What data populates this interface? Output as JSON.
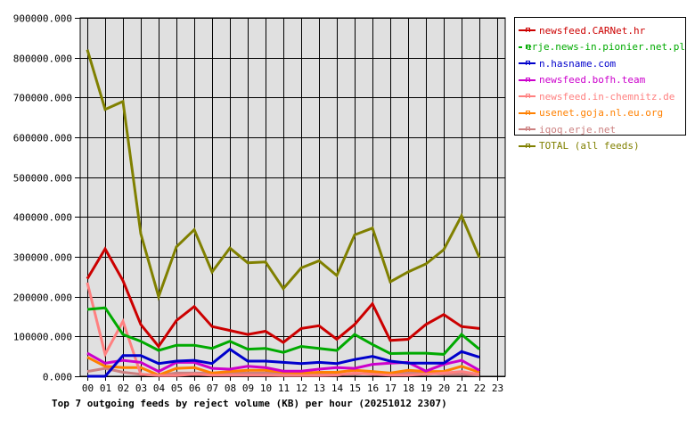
{
  "chart_data": {
    "type": "line",
    "title": "Top 7 outgoing feeds by reject volume (KB) per hour (20251012 2307)",
    "xlabel": "",
    "ylabel": "",
    "ylim": [
      0,
      900000
    ],
    "grid": true,
    "legend_position": "right-top",
    "categories": [
      "00",
      "01",
      "02",
      "03",
      "04",
      "05",
      "06",
      "07",
      "08",
      "09",
      "10",
      "11",
      "12",
      "13",
      "14",
      "15",
      "16",
      "17",
      "18",
      "19",
      "20",
      "21",
      "22",
      "23"
    ],
    "yticks": [
      "0.000",
      "100000.000",
      "200000.000",
      "300000.000",
      "400000.000",
      "500000.000",
      "600000.000",
      "700000.000",
      "800000.000",
      "900000.000"
    ],
    "series": [
      {
        "name": "newsfeed.CARNet.hr",
        "color": "#cc0000",
        "values": [
          245000,
          320000,
          240000,
          130000,
          75000,
          140000,
          175000,
          125000,
          115000,
          105000,
          113000,
          85000,
          120000,
          127000,
          93000,
          130000,
          182000,
          90000,
          93000,
          130000,
          155000,
          125000,
          120000
        ]
      },
      {
        "name": "erje.news-in.pionier.net.pl",
        "color": "#00aa00",
        "values": [
          168000,
          172000,
          105000,
          88000,
          65000,
          78000,
          78000,
          70000,
          88000,
          68000,
          70000,
          60000,
          75000,
          70000,
          65000,
          105000,
          80000,
          57000,
          58000,
          58000,
          55000,
          105000,
          68000
        ]
      },
      {
        "name": "n.hasname.com",
        "color": "#0000cc",
        "values": [
          0,
          0,
          52000,
          52000,
          32000,
          38000,
          40000,
          32000,
          68000,
          38000,
          38000,
          35000,
          32000,
          35000,
          32000,
          42000,
          50000,
          38000,
          33000,
          33000,
          33000,
          62000,
          48000
        ]
      },
      {
        "name": "newsfeed.bofh.team",
        "color": "#cc00cc",
        "values": [
          58000,
          33000,
          40000,
          35000,
          12000,
          35000,
          35000,
          20000,
          18000,
          25000,
          22000,
          13000,
          13000,
          18000,
          22000,
          20000,
          30000,
          33000,
          35000,
          13000,
          30000,
          40000,
          15000
        ]
      },
      {
        "name": "newsfeed.in-chemnitz.de",
        "color": "#ff8080",
        "values": [
          235000,
          55000,
          138000,
          5000,
          2000,
          2000,
          5000,
          3000,
          3000,
          3000,
          3000,
          2000,
          2000,
          2000,
          3000,
          8000,
          5000,
          3000,
          3000,
          5000,
          8000,
          12000,
          5000
        ]
      },
      {
        "name": "usenet.goja.nl.eu.org",
        "color": "#ff8000",
        "values": [
          48000,
          25000,
          22000,
          22000,
          3000,
          20000,
          22000,
          8000,
          12000,
          15000,
          15000,
          10000,
          8000,
          10000,
          10000,
          15000,
          12000,
          8000,
          15000,
          12000,
          12000,
          25000,
          10000
        ]
      },
      {
        "name": "iqoq.erje.net",
        "color": "#cc8080",
        "values": [
          12000,
          20000,
          10000,
          5000,
          3000,
          8000,
          8000,
          8000,
          8000,
          8000,
          8000,
          8000,
          5000,
          5000,
          5000,
          5000,
          8000,
          5000,
          8000,
          8000,
          5000,
          5000,
          3000
        ]
      },
      {
        "name": "TOTAL (all feeds)",
        "color": "#808000",
        "values": [
          820000,
          670000,
          690000,
          358000,
          200000,
          325000,
          368000,
          262000,
          322000,
          285000,
          287000,
          220000,
          272000,
          290000,
          253000,
          355000,
          372000,
          237000,
          262000,
          282000,
          318000,
          403000,
          298000
        ]
      }
    ]
  }
}
